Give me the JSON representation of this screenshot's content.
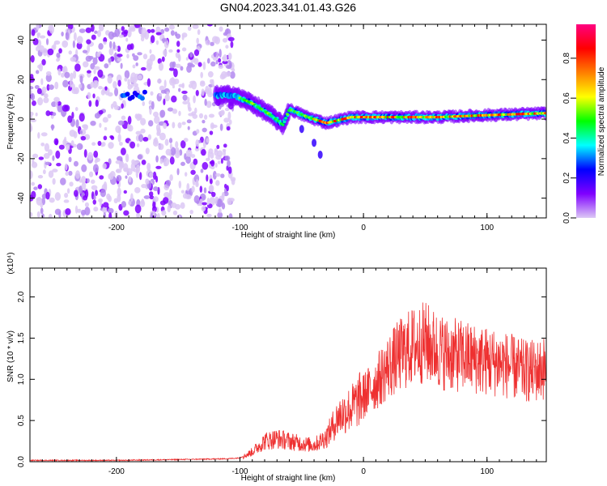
{
  "figure_title": "GN04.2023.341.01.43.G26",
  "chart_data": [
    {
      "type": "heatmap",
      "title": "GN04.2023.341.01.43.G26",
      "xlabel": "Height of straight line (km)",
      "ylabel": "Frequency (Hz)",
      "xlim": [
        -270,
        148
      ],
      "ylim": [
        -50,
        48
      ],
      "xticks": [
        -200,
        -100,
        0,
        100
      ],
      "yticks": [
        -40,
        -20,
        0,
        20,
        40
      ],
      "colorbar": {
        "label": "Normalized spectral amplitude",
        "range": [
          0,
          0.97
        ],
        "ticks": [
          0.0,
          0.2,
          0.4,
          0.6,
          0.8
        ],
        "colormap": [
          "#dcc8f5",
          "#7f00ff",
          "#0000ff",
          "#00ffff",
          "#00ff00",
          "#ffff00",
          "#ff7f00",
          "#ff0000",
          "#ff0080"
        ]
      },
      "features": {
        "noise_region_x": [
          -270,
          -105
        ],
        "ridge": [
          {
            "x": -190,
            "y": 12
          },
          {
            "x": -180,
            "y": 15
          },
          {
            "x": -120,
            "y": 12
          },
          {
            "x": -105,
            "y": 12
          },
          {
            "x": -90,
            "y": 8
          },
          {
            "x": -75,
            "y": 2
          },
          {
            "x": -65,
            "y": -3
          },
          {
            "x": -60,
            "y": 5
          },
          {
            "x": -45,
            "y": 1
          },
          {
            "x": -30,
            "y": -2
          },
          {
            "x": -10,
            "y": 1
          },
          {
            "x": 20,
            "y": 1
          },
          {
            "x": 60,
            "y": 1
          },
          {
            "x": 100,
            "y": 2
          },
          {
            "x": 148,
            "y": 3
          }
        ],
        "tail": [
          {
            "x": -50,
            "y": -5
          },
          {
            "x": -40,
            "y": -12
          },
          {
            "x": -35,
            "y": -18
          }
        ]
      }
    },
    {
      "type": "line",
      "xlabel": "Height of straight line (km)",
      "ylabel": "SNR (10 * v/v)",
      "y_multiplier": "(x10⁴)",
      "xlim": [
        -270,
        148
      ],
      "ylim": [
        0,
        2.35
      ],
      "xticks": [
        -200,
        -100,
        0,
        100
      ],
      "yticks": [
        0.0,
        0.5,
        1.0,
        1.5,
        2.0
      ],
      "series": [
        {
          "color": "#ee3030",
          "x": [
            -270,
            -200,
            -150,
            -110,
            -100,
            -90,
            -80,
            -70,
            -60,
            -50,
            -40,
            -30,
            -20,
            -10,
            0,
            10,
            20,
            30,
            40,
            50,
            60,
            70,
            80,
            90,
            100,
            110,
            120,
            130,
            140,
            148
          ],
          "y": [
            0.01,
            0.01,
            0.02,
            0.03,
            0.04,
            0.12,
            0.25,
            0.28,
            0.25,
            0.22,
            0.2,
            0.3,
            0.55,
            0.65,
            0.8,
            0.95,
            1.15,
            1.3,
            1.4,
            1.45,
            1.35,
            1.3,
            1.28,
            1.25,
            1.22,
            1.2,
            1.15,
            1.1,
            1.1,
            1.15
          ]
        }
      ]
    }
  ]
}
